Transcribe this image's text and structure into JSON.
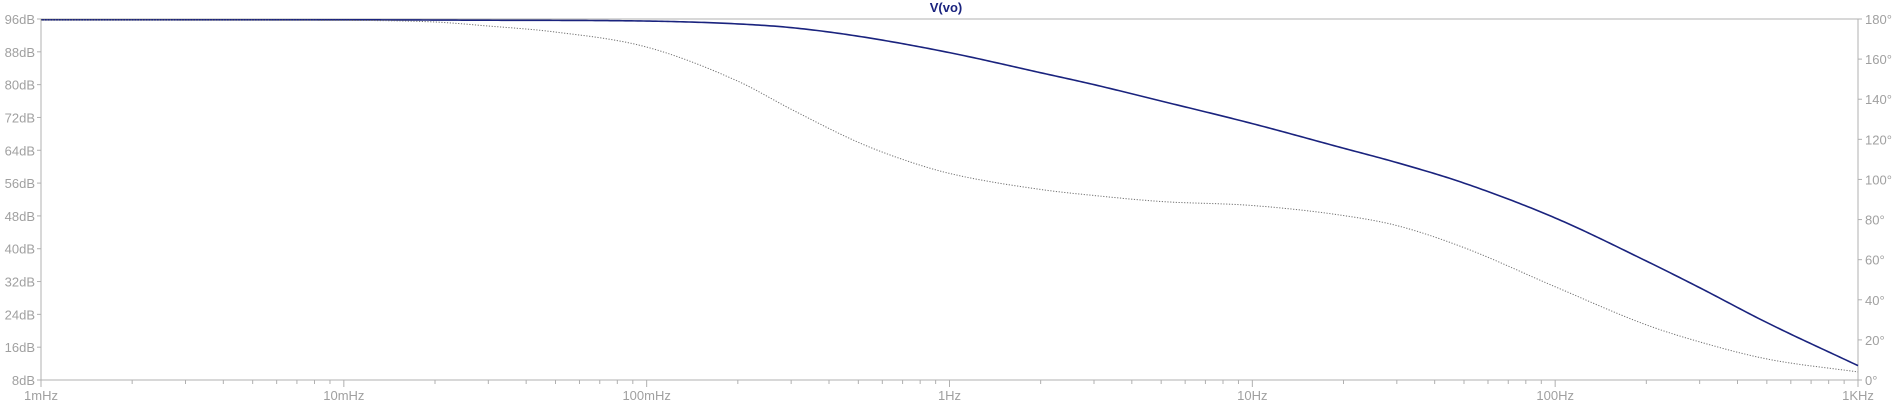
{
  "chart_data": {
    "type": "line",
    "title": "V(vo)",
    "x_scale": "log",
    "xlim_hz": [
      0.001,
      1000
    ],
    "x_ticks": [
      {
        "value": 0.001,
        "label": "1mHz"
      },
      {
        "value": 0.01,
        "label": "10mHz"
      },
      {
        "value": 0.1,
        "label": "100mHz"
      },
      {
        "value": 1,
        "label": "1Hz"
      },
      {
        "value": 10,
        "label": "10Hz"
      },
      {
        "value": 100,
        "label": "100Hz"
      },
      {
        "value": 1000,
        "label": "1KHz"
      }
    ],
    "y_left": {
      "unit": "dB",
      "ylim": [
        8,
        96
      ],
      "ticks": [
        {
          "value": 96,
          "label": "96dB"
        },
        {
          "value": 88,
          "label": "88dB"
        },
        {
          "value": 80,
          "label": "80dB"
        },
        {
          "value": 72,
          "label": "72dB"
        },
        {
          "value": 64,
          "label": "64dB"
        },
        {
          "value": 56,
          "label": "56dB"
        },
        {
          "value": 48,
          "label": "48dB"
        },
        {
          "value": 40,
          "label": "40dB"
        },
        {
          "value": 32,
          "label": "32dB"
        },
        {
          "value": 24,
          "label": "24dB"
        },
        {
          "value": 16,
          "label": "16dB"
        },
        {
          "value": 8,
          "label": "8dB"
        }
      ]
    },
    "y_right": {
      "unit": "degrees",
      "ylim": [
        0,
        180
      ],
      "ticks": [
        {
          "value": 180,
          "label": "180°"
        },
        {
          "value": 160,
          "label": "160°"
        },
        {
          "value": 140,
          "label": "140°"
        },
        {
          "value": 120,
          "label": "120°"
        },
        {
          "value": 100,
          "label": "100°"
        },
        {
          "value": 80,
          "label": "80°"
        },
        {
          "value": 60,
          "label": "60°"
        },
        {
          "value": 40,
          "label": "40°"
        },
        {
          "value": 20,
          "label": "20°"
        },
        {
          "value": 0,
          "label": "0°"
        }
      ]
    },
    "grid": false,
    "series": [
      {
        "role": "magnitude",
        "axis": "left",
        "style": "solid",
        "color": "#1a237e",
        "points": [
          [
            0.001,
            95.8
          ],
          [
            0.003,
            95.8
          ],
          [
            0.01,
            95.8
          ],
          [
            0.03,
            95.7
          ],
          [
            0.1,
            95.5
          ],
          [
            0.2,
            94.8
          ],
          [
            0.3,
            93.9
          ],
          [
            0.5,
            91.8
          ],
          [
            1,
            87.8
          ],
          [
            2,
            82.9
          ],
          [
            3,
            80.0
          ],
          [
            5,
            76.0
          ],
          [
            10,
            70.5
          ],
          [
            20,
            64.5
          ],
          [
            30,
            61.0
          ],
          [
            50,
            56.0
          ],
          [
            100,
            47.5
          ],
          [
            200,
            37.0
          ],
          [
            300,
            30.5
          ],
          [
            500,
            22.0
          ],
          [
            1000,
            11.5
          ]
        ]
      },
      {
        "role": "phase",
        "axis": "right",
        "style": "dotted",
        "color": "#707070",
        "points": [
          [
            0.001,
            179.5
          ],
          [
            0.01,
            179.3
          ],
          [
            0.02,
            178.5
          ],
          [
            0.03,
            176.5
          ],
          [
            0.05,
            173.5
          ],
          [
            0.1,
            166.0
          ],
          [
            0.2,
            149.0
          ],
          [
            0.3,
            135.0
          ],
          [
            0.5,
            118.5
          ],
          [
            0.7,
            110.0
          ],
          [
            1,
            103.0
          ],
          [
            2,
            95.0
          ],
          [
            3,
            92.0
          ],
          [
            5,
            89.0
          ],
          [
            10,
            87.0
          ],
          [
            20,
            82.0
          ],
          [
            30,
            77.0
          ],
          [
            50,
            66.0
          ],
          [
            100,
            46.5
          ],
          [
            200,
            27.5
          ],
          [
            300,
            19.0
          ],
          [
            500,
            10.5
          ],
          [
            1000,
            4.0
          ]
        ]
      }
    ]
  },
  "colors": {
    "axis": "#b0b0b0",
    "tick_text": "#a0a0a0",
    "title": "#1a237e"
  }
}
